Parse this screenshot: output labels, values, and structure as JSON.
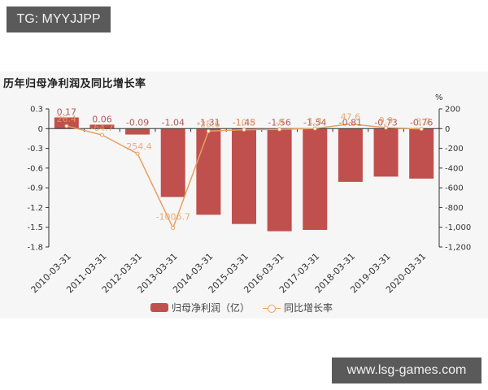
{
  "overlay": {
    "top_left_tag": "TG: MYYJJPP",
    "bottom_right_tag": "www.lsg-games.com"
  },
  "chart_title": "历年归母净利润及同比增长率",
  "legend": {
    "bar_label": "归母净利润（亿）",
    "line_label": "同比增长率"
  },
  "right_axis_unit": "%",
  "colors": {
    "bar": "#c0504d",
    "line": "#e8a060",
    "bar_label": "#b05a5a",
    "line_label": "#e6a060",
    "panel_bg": "#f6f6f6"
  },
  "chart_data": {
    "type": "bar+line",
    "title": "历年归母净利润及同比增长率",
    "categories": [
      "2010-03-31",
      "2011-03-31",
      "2012-03-31",
      "2013-03-31",
      "2014-03-31",
      "2015-03-31",
      "2016-03-31",
      "2017-03-31",
      "2018-03-31",
      "2019-03-31",
      "2020-03-31"
    ],
    "series": [
      {
        "name": "归母净利润（亿）",
        "type": "bar",
        "axis": "left",
        "values": [
          0.17,
          0.06,
          -0.09,
          -1.04,
          -1.31,
          -1.45,
          -1.56,
          -1.54,
          -0.81,
          -0.73,
          -0.76
        ]
      },
      {
        "name": "同比增长率",
        "type": "line",
        "axis": "right",
        "values": [
          26.4,
          -64.7,
          -254.4,
          -1006.7,
          -25.6,
          -10.8,
          -8.0,
          1.3,
          47.6,
          9.9,
          -3.7
        ]
      }
    ],
    "left_axis": {
      "ylim": [
        -1.8,
        0.3
      ],
      "ticks": [
        "0.3",
        "0",
        "-0.3",
        "-0.6",
        "-0.9",
        "-1.2",
        "-1.5",
        "-1.8"
      ]
    },
    "right_axis": {
      "label": "%",
      "ylim": [
        -1200,
        200
      ],
      "ticks": [
        "200",
        "0",
        "-200",
        "-400",
        "-600",
        "-800",
        "-1,000",
        "-1,200"
      ]
    },
    "grid": false,
    "legend_position": "bottom"
  }
}
